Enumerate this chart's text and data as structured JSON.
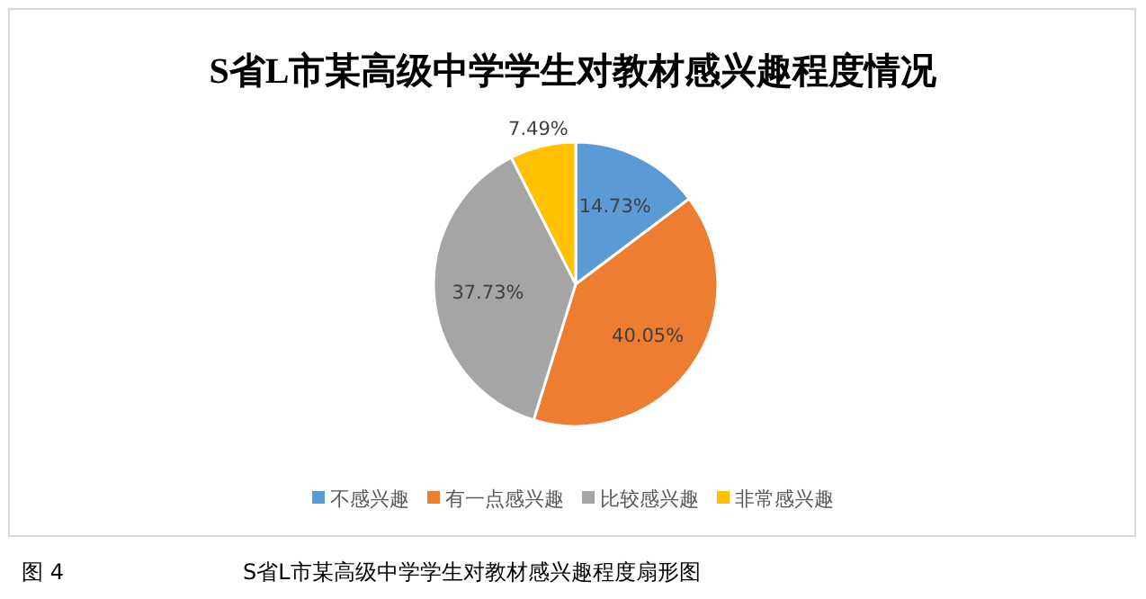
{
  "chart_data": {
    "type": "pie",
    "title": "S省L市某高级中学学生对教材感兴趣程度情况",
    "categories": [
      "不感兴趣",
      "有一点感兴趣",
      "比较感兴趣",
      "非常感兴趣"
    ],
    "values": [
      14.73,
      40.05,
      37.73,
      7.49
    ],
    "colors": [
      "#5b9bd5",
      "#ed7d31",
      "#a5a5a5",
      "#ffc000"
    ],
    "value_labels": [
      "14.73%",
      "40.05%",
      "37.73%",
      "7.49%"
    ],
    "legend": "bottom",
    "annotations": [
      "图 4",
      "S省L市某高级中学学生对教材感兴趣程度扇形图"
    ]
  }
}
